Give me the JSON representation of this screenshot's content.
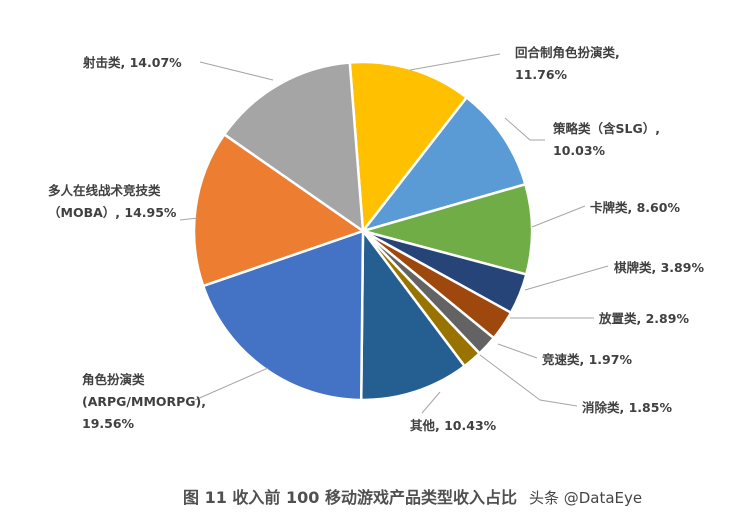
{
  "chart_data": {
    "type": "pie",
    "title": "图 11 收入前 100 移动游戏产品类型收入占比",
    "watermark": "头条 @DataEye",
    "unit": "%",
    "slices": [
      {
        "name": "回合制角色扮演类",
        "label": [
          "回合制角色扮演类,",
          "11.76%"
        ],
        "value": 11.76,
        "color": "#FFC000"
      },
      {
        "name": "策略类（含SLG）",
        "label": [
          "策略类（含SLG）,",
          "10.03%"
        ],
        "value": 10.03,
        "color": "#5B9BD5"
      },
      {
        "name": "卡牌类",
        "label": [
          "卡牌类, 8.60%"
        ],
        "value": 8.6,
        "color": "#70AD47"
      },
      {
        "name": "棋牌类",
        "label": [
          "棋牌类, 3.89%"
        ],
        "value": 3.89,
        "color": "#264478"
      },
      {
        "name": "放置类",
        "label": [
          "放置类, 2.89%"
        ],
        "value": 2.89,
        "color": "#9E480E"
      },
      {
        "name": "竞速类",
        "label": [
          "竞速类, 1.97%"
        ],
        "value": 1.97,
        "color": "#636363"
      },
      {
        "name": "消除类",
        "label": [
          "消除类, 1.85%"
        ],
        "value": 1.85,
        "color": "#997300"
      },
      {
        "name": "其他",
        "label": [
          "其他, 10.43%"
        ],
        "value": 10.43,
        "color": "#255E91"
      },
      {
        "name": "角色扮演类(ARPG/MMORPG)",
        "label": [
          "角色扮演类",
          "(ARPG/MMORPG),",
          "19.56%"
        ],
        "value": 19.56,
        "color": "#4472C4"
      },
      {
        "name": "多人在线战术竞技类(MOBA)",
        "label": [
          "多人在线战术竞技类",
          "（MOBA）, 14.95%"
        ],
        "value": 14.95,
        "color": "#ED7D31"
      },
      {
        "name": "射击类",
        "label": [
          "射击类, 14.07%"
        ],
        "value": 14.07,
        "color": "#A5A5A5"
      }
    ]
  }
}
